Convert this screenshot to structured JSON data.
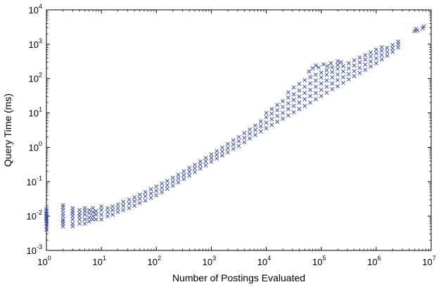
{
  "chart_data": {
    "type": "scatter",
    "title": "",
    "xlabel": "Number of Postings Evaluated",
    "ylabel": "Query Time (ms)",
    "x_scale": "log",
    "y_scale": "log",
    "xlim": [
      1,
      10000000
    ],
    "ylim": [
      0.001,
      10000
    ],
    "x_ticks": [
      {
        "value": 1,
        "base": "10",
        "exp": "0"
      },
      {
        "value": 10,
        "base": "10",
        "exp": "1"
      },
      {
        "value": 100,
        "base": "10",
        "exp": "2"
      },
      {
        "value": 1000,
        "base": "10",
        "exp": "3"
      },
      {
        "value": 10000,
        "base": "10",
        "exp": "4"
      },
      {
        "value": 100000,
        "base": "10",
        "exp": "5"
      },
      {
        "value": 1000000,
        "base": "10",
        "exp": "6"
      },
      {
        "value": 10000000,
        "base": "10",
        "exp": "7"
      }
    ],
    "y_ticks": [
      {
        "value": 0.001,
        "base": "10",
        "exp": "-3"
      },
      {
        "value": 0.01,
        "base": "10",
        "exp": "-2"
      },
      {
        "value": 0.1,
        "base": "10",
        "exp": "-1"
      },
      {
        "value": 1,
        "base": "10",
        "exp": "0"
      },
      {
        "value": 10,
        "base": "10",
        "exp": "1"
      },
      {
        "value": 100,
        "base": "10",
        "exp": "2"
      },
      {
        "value": 1000,
        "base": "10",
        "exp": "3"
      },
      {
        "value": 10000,
        "base": "10",
        "exp": "4"
      }
    ],
    "grid": false,
    "legend": "none",
    "marker": "x",
    "color": "#3a4ea6",
    "series": [
      {
        "points": [
          [
            1,
            0.004
          ],
          [
            1,
            0.005
          ],
          [
            1,
            0.006
          ],
          [
            1,
            0.007
          ],
          [
            1,
            0.008
          ],
          [
            1,
            0.009
          ],
          [
            1,
            0.01
          ],
          [
            1,
            0.011
          ],
          [
            1,
            0.012
          ],
          [
            1,
            0.014
          ],
          [
            1,
            0.016
          ],
          [
            2,
            0.005
          ],
          [
            2,
            0.006
          ],
          [
            2,
            0.007
          ],
          [
            2,
            0.008
          ],
          [
            2,
            0.01
          ],
          [
            2,
            0.012
          ],
          [
            2,
            0.015
          ],
          [
            2,
            0.018
          ],
          [
            2,
            0.021
          ],
          [
            3,
            0.005
          ],
          [
            3,
            0.006
          ],
          [
            3,
            0.008
          ],
          [
            3,
            0.01
          ],
          [
            3,
            0.012
          ],
          [
            3,
            0.014
          ],
          [
            3,
            0.017
          ],
          [
            4,
            0.006
          ],
          [
            4,
            0.008
          ],
          [
            4,
            0.01
          ],
          [
            4,
            0.012
          ],
          [
            4,
            0.015
          ],
          [
            5,
            0.006
          ],
          [
            5,
            0.008
          ],
          [
            5,
            0.011
          ],
          [
            5,
            0.014
          ],
          [
            5,
            0.017
          ],
          [
            6,
            0.007
          ],
          [
            6,
            0.009
          ],
          [
            6,
            0.012
          ],
          [
            6,
            0.015
          ],
          [
            7,
            0.008
          ],
          [
            7,
            0.01
          ],
          [
            7,
            0.013
          ],
          [
            7,
            0.017
          ],
          [
            8,
            0.008
          ],
          [
            8,
            0.011
          ],
          [
            8,
            0.014
          ],
          [
            10,
            0.008
          ],
          [
            10,
            0.011
          ],
          [
            10,
            0.015
          ],
          [
            10,
            0.019
          ],
          [
            13,
            0.01
          ],
          [
            13,
            0.013
          ],
          [
            13,
            0.017
          ],
          [
            16,
            0.011
          ],
          [
            16,
            0.015
          ],
          [
            16,
            0.019
          ],
          [
            20,
            0.013
          ],
          [
            20,
            0.017
          ],
          [
            20,
            0.022
          ],
          [
            25,
            0.015
          ],
          [
            25,
            0.02
          ],
          [
            25,
            0.026
          ],
          [
            32,
            0.017
          ],
          [
            32,
            0.023
          ],
          [
            32,
            0.03
          ],
          [
            40,
            0.02
          ],
          [
            40,
            0.027
          ],
          [
            40,
            0.035
          ],
          [
            50,
            0.024
          ],
          [
            50,
            0.032
          ],
          [
            50,
            0.042
          ],
          [
            63,
            0.028
          ],
          [
            63,
            0.038
          ],
          [
            63,
            0.05
          ],
          [
            80,
            0.034
          ],
          [
            80,
            0.045
          ],
          [
            80,
            0.06
          ],
          [
            100,
            0.04
          ],
          [
            100,
            0.054
          ],
          [
            100,
            0.072
          ],
          [
            126,
            0.05
          ],
          [
            126,
            0.066
          ],
          [
            126,
            0.088
          ],
          [
            158,
            0.062
          ],
          [
            158,
            0.08
          ],
          [
            158,
            0.105
          ],
          [
            200,
            0.076
          ],
          [
            200,
            0.1
          ],
          [
            200,
            0.13
          ],
          [
            251,
            0.095
          ],
          [
            251,
            0.125
          ],
          [
            251,
            0.16
          ],
          [
            316,
            0.12
          ],
          [
            316,
            0.155
          ],
          [
            316,
            0.2
          ],
          [
            398,
            0.15
          ],
          [
            398,
            0.195
          ],
          [
            398,
            0.25
          ],
          [
            501,
            0.19
          ],
          [
            501,
            0.245
          ],
          [
            501,
            0.31
          ],
          [
            631,
            0.24
          ],
          [
            631,
            0.31
          ],
          [
            631,
            0.39
          ],
          [
            794,
            0.3
          ],
          [
            794,
            0.39
          ],
          [
            794,
            0.49
          ],
          [
            1000,
            0.38
          ],
          [
            1000,
            0.49
          ],
          [
            1000,
            0.62
          ],
          [
            1259,
            0.47
          ],
          [
            1259,
            0.61
          ],
          [
            1259,
            0.78
          ],
          [
            1585,
            0.58
          ],
          [
            1585,
            0.76
          ],
          [
            1585,
            0.98
          ],
          [
            1995,
            0.72
          ],
          [
            1995,
            0.95
          ],
          [
            1995,
            1.25
          ],
          [
            2512,
            0.9
          ],
          [
            2512,
            1.2
          ],
          [
            2512,
            1.6
          ],
          [
            3162,
            1.1
          ],
          [
            3162,
            1.5
          ],
          [
            3162,
            2.0
          ],
          [
            3981,
            1.4
          ],
          [
            3981,
            1.9
          ],
          [
            3981,
            2.6
          ],
          [
            5012,
            1.8
          ],
          [
            5012,
            2.5
          ],
          [
            5012,
            3.3
          ],
          [
            6310,
            2.3
          ],
          [
            6310,
            3.2
          ],
          [
            6310,
            4.3
          ],
          [
            7943,
            2.9
          ],
          [
            7943,
            4.1
          ],
          [
            7943,
            5.6
          ],
          [
            10000,
            3.6
          ],
          [
            10000,
            5.2
          ],
          [
            10000,
            7.5
          ],
          [
            10000,
            10
          ],
          [
            12589,
            4.5
          ],
          [
            12589,
            6.6
          ],
          [
            12589,
            9.5
          ],
          [
            12589,
            13
          ],
          [
            15849,
            5.5
          ],
          [
            15849,
            8.2
          ],
          [
            15849,
            12
          ],
          [
            15849,
            17
          ],
          [
            19953,
            6.8
          ],
          [
            19953,
            10
          ],
          [
            19953,
            15
          ],
          [
            19953,
            22
          ],
          [
            25119,
            8.5
          ],
          [
            25119,
            13
          ],
          [
            25119,
            19
          ],
          [
            25119,
            28
          ],
          [
            25119,
            40
          ],
          [
            31623,
            10.5
          ],
          [
            31623,
            16
          ],
          [
            31623,
            24
          ],
          [
            31623,
            35
          ],
          [
            31623,
            55
          ],
          [
            39811,
            13
          ],
          [
            39811,
            20
          ],
          [
            39811,
            30
          ],
          [
            39811,
            45
          ],
          [
            39811,
            70
          ],
          [
            50119,
            16
          ],
          [
            50119,
            25
          ],
          [
            50119,
            38
          ],
          [
            50119,
            58
          ],
          [
            50119,
            90
          ],
          [
            63096,
            20
          ],
          [
            63096,
            31
          ],
          [
            63096,
            47
          ],
          [
            63096,
            72
          ],
          [
            63096,
            110
          ],
          [
            79433,
            25
          ],
          [
            79433,
            38
          ],
          [
            79433,
            58
          ],
          [
            79433,
            88
          ],
          [
            79433,
            130
          ],
          [
            100000,
            31
          ],
          [
            100000,
            47
          ],
          [
            100000,
            72
          ],
          [
            100000,
            108
          ],
          [
            100000,
            150
          ],
          [
            125893,
            39
          ],
          [
            125893,
            58
          ],
          [
            125893,
            88
          ],
          [
            125893,
            130
          ],
          [
            125893,
            175
          ],
          [
            158489,
            49
          ],
          [
            158489,
            72
          ],
          [
            158489,
            108
          ],
          [
            158489,
            155
          ],
          [
            158489,
            210
          ],
          [
            199526,
            60
          ],
          [
            199526,
            90
          ],
          [
            199526,
            132
          ],
          [
            199526,
            190
          ],
          [
            199526,
            250
          ],
          [
            251189,
            75
          ],
          [
            251189,
            110
          ],
          [
            251189,
            162
          ],
          [
            251189,
            230
          ],
          [
            316228,
            95
          ],
          [
            316228,
            135
          ],
          [
            316228,
            198
          ],
          [
            316228,
            280
          ],
          [
            398107,
            118
          ],
          [
            398107,
            165
          ],
          [
            398107,
            240
          ],
          [
            398107,
            340
          ],
          [
            501187,
            145
          ],
          [
            501187,
            205
          ],
          [
            501187,
            295
          ],
          [
            501187,
            410
          ],
          [
            630957,
            180
          ],
          [
            630957,
            255
          ],
          [
            630957,
            360
          ],
          [
            630957,
            480
          ],
          [
            794328,
            225
          ],
          [
            794328,
            315
          ],
          [
            794328,
            440
          ],
          [
            794328,
            580
          ],
          [
            1000000,
            280
          ],
          [
            1000000,
            390
          ],
          [
            1000000,
            540
          ],
          [
            1000000,
            700
          ],
          [
            1258925,
            360
          ],
          [
            1258925,
            480
          ],
          [
            1258925,
            650
          ],
          [
            1258925,
            820
          ],
          [
            1584893,
            460
          ],
          [
            1584893,
            600
          ],
          [
            1584893,
            780
          ],
          [
            1995262,
            600
          ],
          [
            1995262,
            760
          ],
          [
            1995262,
            950
          ],
          [
            2511886,
            800
          ],
          [
            2511886,
            1000
          ],
          [
            2511886,
            1200
          ],
          [
            5000000,
            2400
          ],
          [
            5300000,
            2800
          ],
          [
            5600000,
            2500
          ],
          [
            7000000,
            2900
          ],
          [
            7300000,
            3300
          ],
          [
            60000,
            160
          ],
          [
            70000,
            200
          ],
          [
            80000,
            240
          ],
          [
            90000,
            210
          ],
          [
            110000,
            260
          ],
          [
            130000,
            230
          ],
          [
            150000,
            280
          ],
          [
            200000,
            320
          ],
          [
            230000,
            300
          ]
        ]
      }
    ]
  }
}
